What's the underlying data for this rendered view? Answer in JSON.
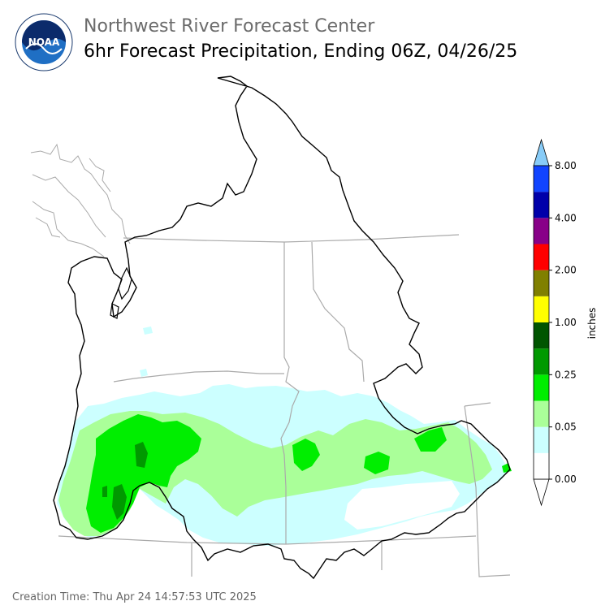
{
  "header": {
    "title": "Northwest River Forecast Center",
    "subtitle": "6hr Forecast Precipitation, Ending 06Z, 04/26/25"
  },
  "logo": {
    "icon": "noaa-logo-icon",
    "text": "NOAA",
    "ring_text": "NATIONAL OCEANIC AND ATMOSPHERIC ADMINISTRATION · U.S. DEPARTMENT OF COMMERCE"
  },
  "legend": {
    "unit": "inches",
    "ticks": [
      "0.00",
      "0.05",
      "0.25",
      "1.00",
      "2.00",
      "4.00",
      "8.00"
    ],
    "colors": [
      "#ffffff",
      "#ccffff",
      "#aaff99",
      "#00ee00",
      "#009900",
      "#005500",
      "#ffff00",
      "#808000",
      "#ff0000",
      "#880088",
      "#0000aa",
      "#1144ff"
    ],
    "under_color": "#ffffff",
    "over_color": "#88ccf8"
  },
  "map": {
    "basin_outline_color": "#000000",
    "state_border_color": "#aaaaaa",
    "coastline_color": "#aaaaaa"
  },
  "footer": {
    "creation_time": "Creation Time: Thu Apr 24 14:57:53 UTC 2025"
  }
}
